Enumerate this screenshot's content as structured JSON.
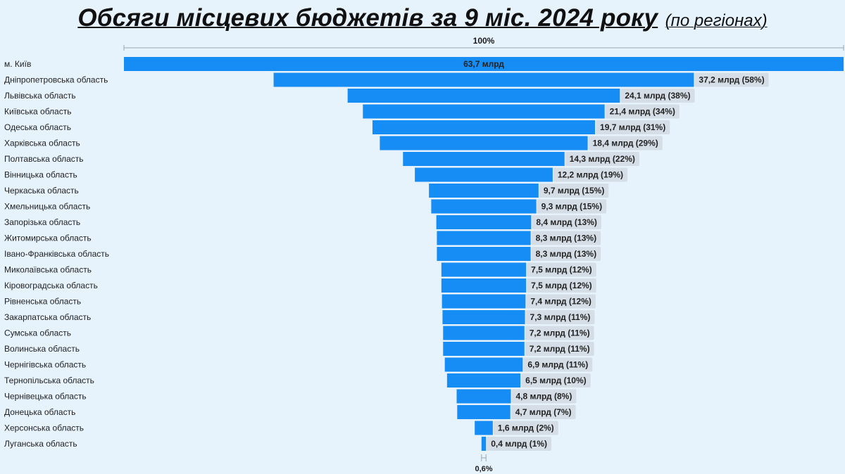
{
  "title": {
    "main": "Обсяги місцевих бюджетів за 9 міс. 2024 року",
    "sub": "(по регіонах)"
  },
  "colors": {
    "bar": "#168cf5",
    "label_bg": "#d5dde6",
    "background": "#e6f2fc"
  },
  "chart_data": {
    "type": "bar",
    "orientation": "horizontal-funnel",
    "title": "Обсяги місцевих бюджетів за 9 міс. 2024 року (по регіонах)",
    "unit": "млрд",
    "top_reference_label": "100%",
    "bottom_reference_label": "0,6%",
    "categories": [
      "м. Київ",
      "Дніпропетровська область",
      "Львівська область",
      "Київська область",
      "Одеська область",
      "Харківська область",
      "Полтавська область",
      "Вінницька область",
      "Черкаська область",
      "Хмельницька область",
      "Запорізька область",
      "Житомирська область",
      "Івано-Франківська область",
      "Миколаївська область",
      "Кіровоградська область",
      "Рівненська область",
      "Закарпатська область",
      "Сумська область",
      "Волинська область",
      "Чернігівська область",
      "Тернопільська область",
      "Чернівецька область",
      "Донецька область",
      "Херсонська область",
      "Луганська область"
    ],
    "values": [
      63.7,
      37.2,
      24.1,
      21.4,
      19.7,
      18.4,
      14.3,
      12.2,
      9.7,
      9.3,
      8.4,
      8.3,
      8.3,
      7.5,
      7.5,
      7.4,
      7.3,
      7.2,
      7.2,
      6.9,
      6.5,
      4.8,
      4.7,
      1.6,
      0.4
    ],
    "value_labels": [
      "63,7 млрд",
      "37,2 млрд (58%)",
      "24,1 млрд (38%)",
      "21,4 млрд (34%)",
      "19,7 млрд (31%)",
      "18,4 млрд (29%)",
      "14,3 млрд (22%)",
      "12,2 млрд (19%)",
      "9,7 млрд (15%)",
      "9,3 млрд (15%)",
      "8,4 млрд (13%)",
      "8,3 млрд (13%)",
      "8,3 млрд (13%)",
      "7,5 млрд (12%)",
      "7,5 млрд (12%)",
      "7,4 млрд (12%)",
      "7,3 млрд (11%)",
      "7,2 млрд (11%)",
      "7,2 млрд (11%)",
      "6,9 млрд (11%)",
      "6,5 млрд (10%)",
      "4,8 млрд (8%)",
      "4,7 млрд (7%)",
      "1,6 млрд (2%)",
      "0,4 млрд (1%)"
    ],
    "xlim": [
      0,
      63.7
    ],
    "grid": false,
    "legend": "none"
  }
}
